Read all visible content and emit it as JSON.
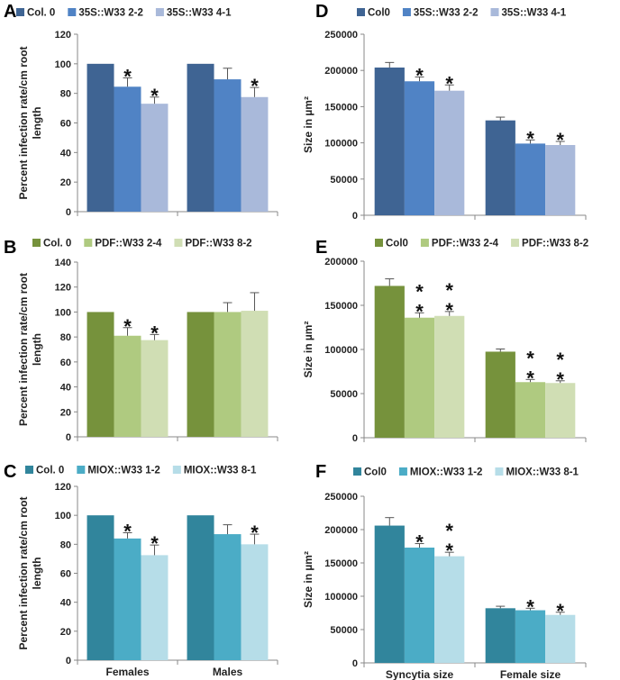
{
  "figure": {
    "x_categories_left": [
      "Females",
      "Males"
    ],
    "x_categories_right": [
      "Syncytia size",
      "Female size"
    ]
  },
  "chart_data": [
    {
      "panel": "A",
      "type": "bar",
      "categories": [
        "Females",
        "Males"
      ],
      "series": [
        {
          "name": "Col. 0",
          "color": "#3F6493",
          "values": [
            100,
            100
          ],
          "errors": [
            0,
            0
          ],
          "stars": [
            0,
            0
          ]
        },
        {
          "name": "35S::W33 2-2",
          "color": "#5083C5",
          "values": [
            84.5,
            89.5
          ],
          "errors": [
            6,
            7.5
          ],
          "stars": [
            1,
            0
          ]
        },
        {
          "name": "35S::W33 4-1",
          "color": "#A9B9DA",
          "values": [
            73,
            77.5
          ],
          "errors": [
            4.5,
            6.5
          ],
          "stars": [
            1,
            1
          ]
        }
      ],
      "ylabel": "Percent infection rate/cm root length",
      "ylim": [
        0,
        120
      ],
      "yticks": [
        0,
        20,
        40,
        60,
        80,
        100,
        120
      ]
    },
    {
      "panel": "D",
      "type": "bar",
      "categories": [
        "Syncytia size",
        "Female size"
      ],
      "series": [
        {
          "name": "Col0",
          "color": "#3F6493",
          "values": [
            204000,
            131000
          ],
          "errors": [
            7000,
            4500
          ],
          "stars": [
            0,
            0
          ]
        },
        {
          "name": "35S::W33 2-2",
          "color": "#5083C5",
          "values": [
            185000,
            99000
          ],
          "errors": [
            6000,
            5000
          ],
          "stars": [
            1,
            1
          ]
        },
        {
          "name": "35S::W33 4-1",
          "color": "#A9B9DA",
          "values": [
            172000,
            97000
          ],
          "errors": [
            8000,
            5000
          ],
          "stars": [
            1,
            1
          ]
        }
      ],
      "ylabel": "Size in µm²",
      "ylim": [
        0,
        250000
      ],
      "yticks": [
        0,
        50000,
        100000,
        150000,
        200000,
        250000
      ]
    },
    {
      "panel": "B",
      "type": "bar",
      "categories": [
        "Females",
        "Males"
      ],
      "series": [
        {
          "name": "Col. 0",
          "color": "#76923C",
          "values": [
            100,
            100
          ],
          "errors": [
            0,
            0
          ],
          "stars": [
            0,
            0
          ]
        },
        {
          "name": "PDF::W33 2-4",
          "color": "#AFCA80",
          "values": [
            81,
            100
          ],
          "errors": [
            6.5,
            7.5
          ],
          "stars": [
            1,
            0
          ]
        },
        {
          "name": "PDF::W33 8-2",
          "color": "#D0DEB4",
          "values": [
            77.5,
            101
          ],
          "errors": [
            4.5,
            14.5
          ],
          "stars": [
            1,
            0
          ]
        }
      ],
      "ylabel": "Percent infection rate/cm root length",
      "ylim": [
        0,
        140
      ],
      "yticks": [
        0,
        20,
        40,
        60,
        80,
        100,
        120,
        140
      ]
    },
    {
      "panel": "E",
      "type": "bar",
      "categories": [
        "Syncytia size",
        "Female size"
      ],
      "series": [
        {
          "name": "Col0",
          "color": "#76923C",
          "values": [
            172000,
            97500
          ],
          "errors": [
            8000,
            3000
          ],
          "stars": [
            0,
            0
          ]
        },
        {
          "name": "PDF::W33 2-4",
          "color": "#AFCA80",
          "values": [
            136000,
            63000
          ],
          "errors": [
            5500,
            3000
          ],
          "stars": [
            2,
            2
          ]
        },
        {
          "name": "PDF::W33 8-2",
          "color": "#D0DEB4",
          "values": [
            138000,
            62000
          ],
          "errors": [
            5000,
            2500
          ],
          "stars": [
            2,
            2
          ]
        }
      ],
      "ylabel": "Size in µm²",
      "ylim": [
        0,
        200000
      ],
      "yticks": [
        0,
        50000,
        100000,
        150000,
        200000
      ]
    },
    {
      "panel": "C",
      "type": "bar",
      "categories": [
        "Females",
        "Males"
      ],
      "series": [
        {
          "name": "Col. 0",
          "color": "#31859C",
          "values": [
            100,
            100
          ],
          "errors": [
            0,
            0
          ],
          "stars": [
            0,
            0
          ]
        },
        {
          "name": "MIOX::W33 1-2",
          "color": "#4BACC6",
          "values": [
            84,
            87
          ],
          "errors": [
            4,
            6.5
          ],
          "stars": [
            1,
            0
          ]
        },
        {
          "name": "MIOX::W33 8-1",
          "color": "#B6DDE8",
          "values": [
            72.5,
            80
          ],
          "errors": [
            7,
            7
          ],
          "stars": [
            1,
            1
          ]
        }
      ],
      "ylabel": "Percent infection rate/cm root length",
      "ylim": [
        0,
        120
      ],
      "yticks": [
        0,
        20,
        40,
        60,
        80,
        100,
        120
      ]
    },
    {
      "panel": "F",
      "type": "bar",
      "categories": [
        "Syncytia size",
        "Female size"
      ],
      "series": [
        {
          "name": "Col0",
          "color": "#31859C",
          "values": [
            206000,
            82000
          ],
          "errors": [
            12000,
            3000
          ],
          "stars": [
            0,
            0
          ]
        },
        {
          "name": "MIOX::W33 1-2",
          "color": "#4BACC6",
          "values": [
            173000,
            79000
          ],
          "errors": [
            6000,
            3000
          ],
          "stars": [
            1,
            1
          ]
        },
        {
          "name": "MIOX::W33 8-1",
          "color": "#B6DDE8",
          "values": [
            160000,
            72000
          ],
          "errors": [
            6000,
            4000
          ],
          "stars": [
            2,
            1
          ]
        }
      ],
      "ylabel": "Size in µm²",
      "ylim": [
        0,
        250000
      ],
      "yticks": [
        0,
        50000,
        100000,
        150000,
        200000,
        250000
      ]
    }
  ]
}
